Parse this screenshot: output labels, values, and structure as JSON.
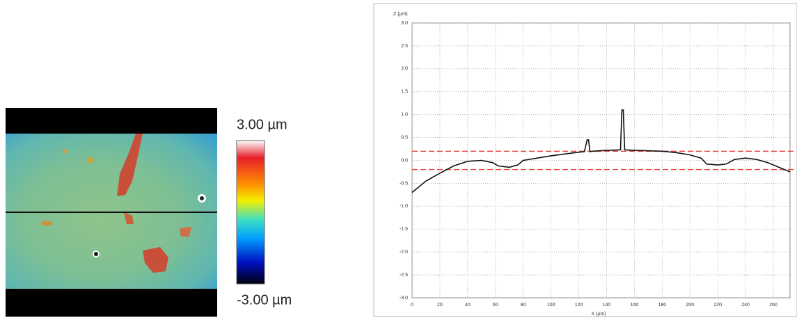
{
  "height_map": {
    "scale_max": "3.00 µm",
    "scale_min": "-3.00 µm"
  },
  "chart_data": {
    "type": "line",
    "ylabel": "Z (µm)",
    "xlabel": "X (µm)",
    "xlim": [
      0,
      272
    ],
    "ylim": [
      -3,
      3
    ],
    "xticks": [
      0,
      20,
      40,
      60,
      80,
      100,
      120,
      140,
      160,
      180,
      200,
      220,
      240,
      260
    ],
    "yticks": [
      {
        "value": 3,
        "label": "3.0"
      },
      2.5,
      {
        "value": 2,
        "label": "2.0"
      },
      1.5,
      {
        "value": 1,
        "label": "1.0"
      },
      0.5,
      {
        "value": 0,
        "label": "0.0"
      },
      -0.5,
      {
        "value": -1,
        "label": "-1.0"
      },
      -1.5,
      {
        "value": -2,
        "label": "-2.0"
      },
      -2.5,
      {
        "value": -3,
        "label": "-3.0"
      }
    ],
    "grid": true,
    "reference_lines": [
      0.2,
      -0.2
    ],
    "reference_color": "#e8453c",
    "series": [
      {
        "color": "#111111",
        "x": [
          0,
          10,
          20,
          30,
          40,
          50,
          58,
          62,
          70,
          76,
          80,
          90,
          100,
          110,
          120,
          124,
          126,
          127,
          128,
          130,
          140,
          150,
          151,
          152,
          153,
          160,
          170,
          180,
          190,
          200,
          208,
          212,
          220,
          226,
          232,
          240,
          248,
          256,
          264,
          272
        ],
        "values": [
          -0.7,
          -0.45,
          -0.28,
          -0.12,
          -0.02,
          0.0,
          -0.05,
          -0.12,
          -0.15,
          -0.1,
          0.0,
          0.05,
          0.1,
          0.14,
          0.18,
          0.19,
          0.45,
          0.45,
          0.19,
          0.2,
          0.22,
          0.23,
          1.1,
          1.1,
          0.23,
          0.22,
          0.21,
          0.2,
          0.17,
          0.12,
          0.05,
          -0.08,
          -0.1,
          -0.08,
          0.02,
          0.05,
          0.02,
          -0.05,
          -0.15,
          -0.25
        ]
      }
    ]
  }
}
